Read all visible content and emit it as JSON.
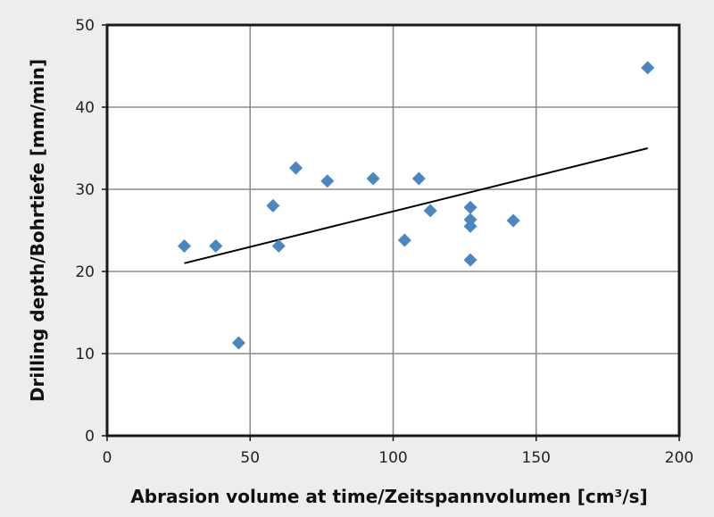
{
  "chart_data": {
    "type": "scatter",
    "title": "",
    "xlabel": "Abrasion volume at time/Zeitspannvolumen [cm³/s]",
    "ylabel": "Drilling depth/Bohrtiefe [mm/min]",
    "xlim": [
      0,
      200
    ],
    "ylim": [
      0,
      50
    ],
    "xticks": [
      0,
      50,
      100,
      150,
      200
    ],
    "yticks": [
      0,
      10,
      20,
      30,
      40,
      50
    ],
    "grid": true,
    "legend": "none",
    "series": [
      {
        "x": [
          27,
          38,
          46,
          58,
          60,
          66,
          77,
          93,
          104,
          109,
          113,
          127,
          127,
          127,
          127,
          142,
          189
        ],
        "y": [
          23.1,
          23.1,
          11.3,
          28.0,
          23.1,
          32.6,
          31.0,
          31.3,
          23.8,
          31.3,
          27.4,
          27.8,
          26.3,
          25.5,
          21.4,
          26.2,
          44.8
        ],
        "color": "#4a86c2",
        "marker": "diamond"
      }
    ],
    "trendline": {
      "type": "linear",
      "x": [
        27,
        189
      ],
      "y": [
        21.0,
        35.0
      ],
      "color": "#000000"
    },
    "frame_color": "#1a1a1a",
    "grid_color": "#8c8c8c",
    "plot_background": "#ffffff"
  }
}
